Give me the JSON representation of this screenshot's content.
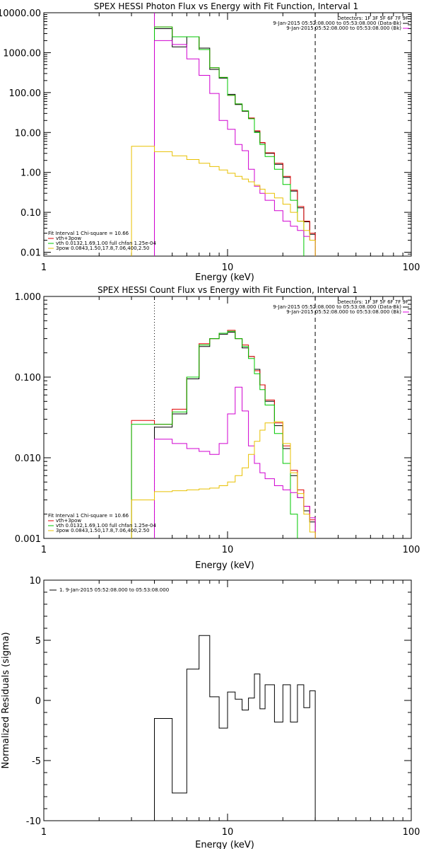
{
  "chart_data": [
    {
      "type": "line",
      "title": "SPEX HESSI Photon Flux vs Energy with Fit Function, Interval 1",
      "xlabel": "Energy (keV)",
      "ylabel": "",
      "xscale": "log",
      "yscale": "log",
      "xlim": [
        1,
        100
      ],
      "ylim": [
        0.008,
        10000
      ],
      "x_ticks": [
        {
          "v": 1,
          "label": "1"
        },
        {
          "v": 10,
          "label": "10"
        },
        {
          "v": 100,
          "label": "100"
        }
      ],
      "y_ticks": [
        {
          "v": 10000,
          "label": "10000.00"
        },
        {
          "v": 1000,
          "label": "1000.00"
        },
        {
          "v": 100,
          "label": "100.00"
        },
        {
          "v": 10,
          "label": "10.00"
        },
        {
          "v": 1,
          "label": "1.00"
        },
        {
          "v": 0.1,
          "label": "0.10"
        },
        {
          "v": 0.01,
          "label": "0.01"
        }
      ],
      "info_lines": [
        "Detectors: 1F 3F 5F 6F 7F 9F",
        "9-Jan-2015 05:52:08.000 to 05:53:08.000 (Data-Bk)",
        "9-Jan-2015 05:52:08.000 to 05:53:08.000 (Bk)"
      ],
      "info_colors": [
        "",
        "#000000",
        "#e000e0"
      ],
      "fit_lines": [
        "Fit Interval 1   Chi-square = 10.66",
        "vth+3pow",
        "vth 0.0132,1.69,1.00  full chfan 1.25e-04",
        "3pow 0.0843,1.50,17.8,7.06,400,2.50"
      ],
      "fit_colors": [
        "",
        "#e00000",
        "#00c800",
        "#e8c000"
      ],
      "vlines": [
        {
          "x": 4.0,
          "style": "solid",
          "color": "#d000d0"
        },
        {
          "x": 30.0,
          "style": "dashed",
          "color": "#000000"
        }
      ],
      "edges": [
        3,
        4,
        5,
        6,
        7,
        8,
        9,
        10,
        11,
        12,
        13,
        14,
        15,
        16,
        18,
        20,
        22,
        24,
        26,
        28,
        30
      ],
      "series": [
        {
          "name": "Data-Bk",
          "color": "#000000",
          "values": [
            null,
            4000,
            1400,
            2500,
            1300,
            380,
            230,
            90,
            50,
            34,
            23,
            10.5,
            5.5,
            3.0,
            1.6,
            0.75,
            0.34,
            0.13,
            0.058,
            0.028
          ]
        },
        {
          "name": "vth+3pow",
          "color": "#e00000",
          "values": [
            null,
            4400,
            2500,
            2500,
            1200,
            420,
            240,
            85,
            52,
            35,
            23,
            11,
            5.6,
            3.1,
            1.7,
            0.8,
            0.36,
            0.14,
            0.06,
            0.03
          ]
        },
        {
          "name": "vth",
          "color": "#00c800",
          "values": [
            null,
            4400,
            2500,
            2500,
            1200,
            420,
            240,
            85,
            52,
            35,
            22,
            10,
            5.0,
            2.5,
            1.2,
            0.5,
            0.2,
            0.06,
            null,
            null
          ]
        },
        {
          "name": "Bk",
          "color": "#d000d0",
          "values": [
            null,
            2000,
            1600,
            700,
            270,
            95,
            20,
            12,
            5.0,
            3.5,
            1.2,
            0.45,
            0.3,
            0.2,
            0.11,
            0.06,
            0.045,
            0.035,
            0.025,
            0.02
          ]
        },
        {
          "name": "3pow",
          "color": "#e8c000",
          "values": [
            4.5,
            3.3,
            2.6,
            2.1,
            1.7,
            1.4,
            1.15,
            0.95,
            0.8,
            0.68,
            0.58,
            0.48,
            0.38,
            0.3,
            0.23,
            0.16,
            0.1,
            0.06,
            0.035,
            0.02
          ]
        }
      ]
    },
    {
      "type": "line",
      "title": "SPEX HESSI Count Flux vs Energy with Fit Function, Interval 1",
      "xlabel": "Energy (keV)",
      "ylabel": "",
      "xscale": "log",
      "yscale": "log",
      "xlim": [
        1,
        100
      ],
      "ylim": [
        0.001,
        1.0
      ],
      "x_ticks": [
        {
          "v": 1,
          "label": "1"
        },
        {
          "v": 10,
          "label": "10"
        },
        {
          "v": 100,
          "label": "100"
        }
      ],
      "y_ticks": [
        {
          "v": 1,
          "label": "1.000"
        },
        {
          "v": 0.1,
          "label": "0.100"
        },
        {
          "v": 0.01,
          "label": "0.010"
        },
        {
          "v": 0.001,
          "label": "0.001"
        }
      ],
      "info_lines": [
        "Detectors: 1F 3F 5F 6F 7F 9F",
        "9-Jan-2015 05:52:08.000 to 05:53:08.000 (Data-Bk)",
        "9-Jan-2015 05:52:08.000 to 05:53:08.000 (Bk)"
      ],
      "info_colors": [
        "",
        "#000000",
        "#e000e0"
      ],
      "fit_lines": [
        "Fit Interval 1   Chi-square = 10.66",
        "vth+3pow",
        "vth 0.0132,1.69,1.00  full chfan 1.25e-04",
        "3pow 0.0843,1.50,17.8,7.06,400,2.50"
      ],
      "fit_colors": [
        "",
        "#e00000",
        "#00c800",
        "#e8c000"
      ],
      "vlines": [
        {
          "x": 4.0,
          "style": "dotted",
          "color": "#000000"
        },
        {
          "x": 30.0,
          "style": "dashed",
          "color": "#000000"
        }
      ],
      "edges": [
        3,
        4,
        5,
        6,
        7,
        8,
        9,
        10,
        11,
        12,
        13,
        14,
        15,
        16,
        18,
        20,
        22,
        24,
        26,
        28,
        30
      ],
      "series": [
        {
          "name": "Data-Bk",
          "color": "#000000",
          "values": [
            null,
            0.024,
            0.035,
            0.095,
            0.24,
            0.3,
            0.34,
            0.36,
            0.3,
            0.23,
            0.18,
            0.125,
            0.08,
            0.05,
            0.025,
            0.013,
            0.006,
            0.0032,
            0.0022,
            0.0016
          ]
        },
        {
          "name": "vth+3pow",
          "color": "#e00000",
          "values": [
            0.029,
            0.026,
            0.04,
            0.1,
            0.26,
            0.3,
            0.35,
            0.38,
            0.3,
            0.25,
            0.18,
            0.12,
            0.08,
            0.052,
            0.027,
            0.014,
            0.007,
            0.004,
            0.0025,
            0.0017
          ]
        },
        {
          "name": "vth",
          "color": "#00c800",
          "values": [
            0.026,
            0.026,
            0.037,
            0.1,
            0.25,
            0.3,
            0.35,
            0.37,
            0.3,
            0.24,
            0.17,
            0.11,
            0.07,
            0.045,
            0.02,
            0.0085,
            0.002,
            null,
            null,
            null
          ]
        },
        {
          "name": "Bk",
          "color": "#d000d0",
          "values": [
            null,
            0.017,
            0.015,
            0.013,
            0.012,
            0.011,
            0.015,
            0.035,
            0.075,
            0.038,
            0.014,
            0.0085,
            0.0065,
            0.0055,
            0.0045,
            0.004,
            0.0037,
            0.0032,
            0.0025,
            0.0018
          ]
        },
        {
          "name": "3pow",
          "color": "#e8c000",
          "values": [
            0.003,
            0.0038,
            0.0039,
            0.004,
            0.0041,
            0.0042,
            0.0045,
            0.005,
            0.006,
            0.0075,
            0.011,
            0.016,
            0.022,
            0.027,
            0.028,
            0.015,
            0.0065,
            0.0036,
            0.002,
            0.0012
          ]
        }
      ]
    },
    {
      "type": "line",
      "title": "",
      "xlabel": "Energy (keV)",
      "ylabel": "Normalized Residuals (sigma)",
      "xscale": "log",
      "yscale": "linear",
      "xlim": [
        1,
        100
      ],
      "ylim": [
        -10,
        10
      ],
      "x_ticks": [
        {
          "v": 1,
          "label": "1"
        },
        {
          "v": 10,
          "label": "10"
        },
        {
          "v": 100,
          "label": "100"
        }
      ],
      "y_ticks": [
        {
          "v": 10,
          "label": "10"
        },
        {
          "v": 5,
          "label": "5"
        },
        {
          "v": 0,
          "label": "0"
        },
        {
          "v": -5,
          "label": "-5"
        },
        {
          "v": -10,
          "label": "-10"
        }
      ],
      "legend": "1. 9-Jan-2015 05:52:08.000 to 05:53:08.000",
      "edges": [
        4,
        5,
        6,
        7,
        8,
        9,
        10,
        11,
        12,
        13,
        14,
        15,
        16,
        18,
        20,
        22,
        24,
        26,
        28,
        30
      ],
      "series": [
        {
          "name": "1. 9-Jan-2015 05:52:08.000 to 05:53:08.000",
          "color": "#000000",
          "values": [
            -1.5,
            -7.7,
            2.6,
            5.4,
            0.3,
            -2.3,
            0.7,
            0.1,
            -0.8,
            0.2,
            2.2,
            -0.7,
            1.3,
            -1.8,
            1.3,
            -1.8,
            1.3,
            -0.6,
            0.8
          ]
        }
      ]
    }
  ]
}
